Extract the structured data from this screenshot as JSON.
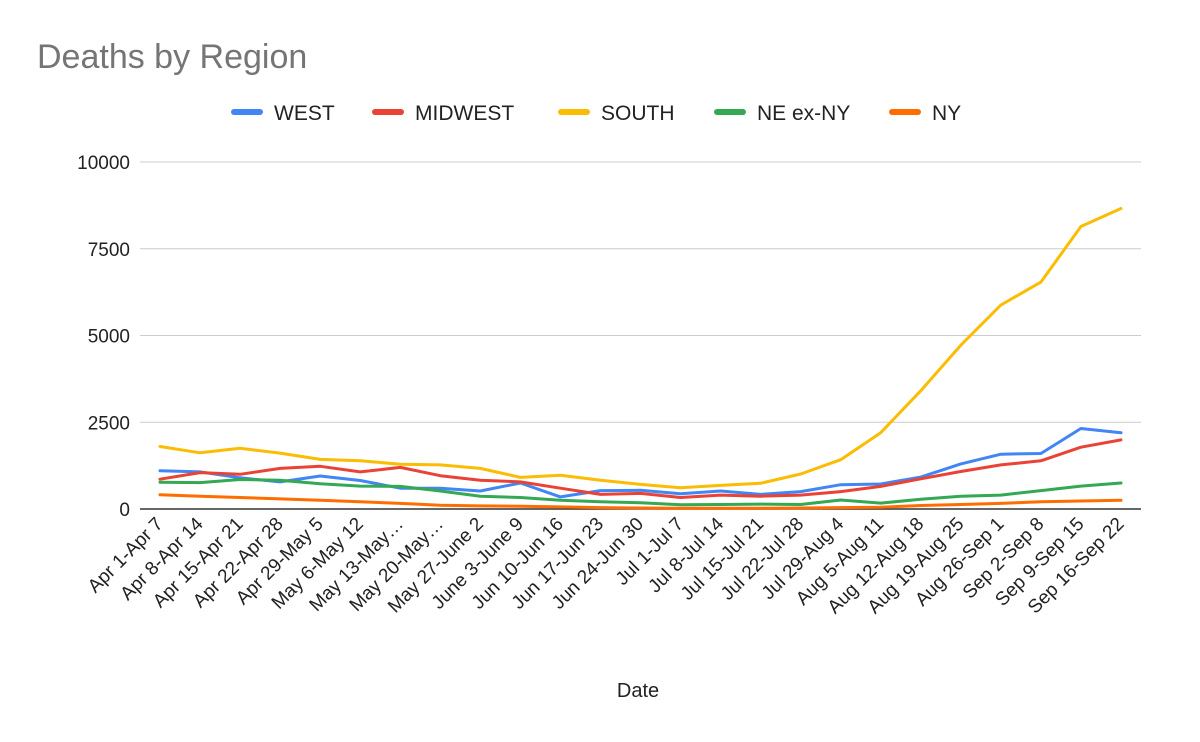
{
  "chart_data": {
    "type": "line",
    "title": "Deaths by Region",
    "xlabel": "Date",
    "ylabel": "",
    "ylim": [
      0,
      10000
    ],
    "yticks": [
      0,
      2500,
      5000,
      7500,
      10000
    ],
    "grid": true,
    "legend_position": "top",
    "categories": [
      "Apr 1-Apr 7",
      "Apr 8-Apr 14",
      "Apr 15-Apr 21",
      "Apr 22-Apr 28",
      "Apr 29-May 5",
      "May 6-May 12",
      "May 13-May…",
      "May 20-May…",
      "May 27-June 2",
      "June 3-June 9",
      "Jun 10-Jun 16",
      "Jun 17-Jun 23",
      "Jun 24-Jun 30",
      "Jul 1-Jul 7",
      "Jul 8-Jul 14",
      "Jul 15-Jul 21",
      "Jul 22-Jul 28",
      "Jul 29-Aug 4",
      "Aug 5-Aug 11",
      "Aug 12-Aug 18",
      "Aug 19-Aug 25",
      "Aug 26-Sep 1",
      "Sep 2-Sep 8",
      "Sep 9-Sep 15",
      "Sep 16-Sep 22"
    ],
    "series": [
      {
        "name": "WEST",
        "color": "#4285f4",
        "values": [
          1100,
          1070,
          900,
          780,
          950,
          820,
          600,
          600,
          520,
          750,
          350,
          530,
          540,
          440,
          520,
          420,
          500,
          700,
          720,
          920,
          1300,
          1580,
          1600,
          2320,
          2200
        ]
      },
      {
        "name": "MIDWEST",
        "color": "#ea4335",
        "values": [
          860,
          1050,
          1000,
          1170,
          1230,
          1070,
          1200,
          960,
          830,
          780,
          600,
          420,
          450,
          330,
          400,
          370,
          400,
          500,
          650,
          870,
          1080,
          1270,
          1390,
          1780,
          1990
        ]
      },
      {
        "name": "SOUTH",
        "color": "#fbbc04",
        "values": [
          1800,
          1620,
          1750,
          1610,
          1430,
          1390,
          1290,
          1270,
          1170,
          910,
          970,
          830,
          710,
          610,
          680,
          740,
          1010,
          1420,
          2200,
          3410,
          4720,
          5880,
          6540,
          8140,
          8660
        ]
      },
      {
        "name": "NE ex-NY",
        "color": "#34a853",
        "values": [
          770,
          760,
          850,
          830,
          730,
          660,
          650,
          520,
          370,
          330,
          250,
          210,
          180,
          120,
          130,
          140,
          130,
          260,
          170,
          280,
          370,
          400,
          530,
          660,
          750
        ]
      },
      {
        "name": "NY",
        "color": "#ff6d01",
        "values": [
          410,
          370,
          330,
          290,
          250,
          210,
          160,
          110,
          90,
          80,
          60,
          40,
          30,
          20,
          20,
          20,
          30,
          40,
          50,
          100,
          130,
          160,
          210,
          230,
          250
        ]
      }
    ]
  }
}
